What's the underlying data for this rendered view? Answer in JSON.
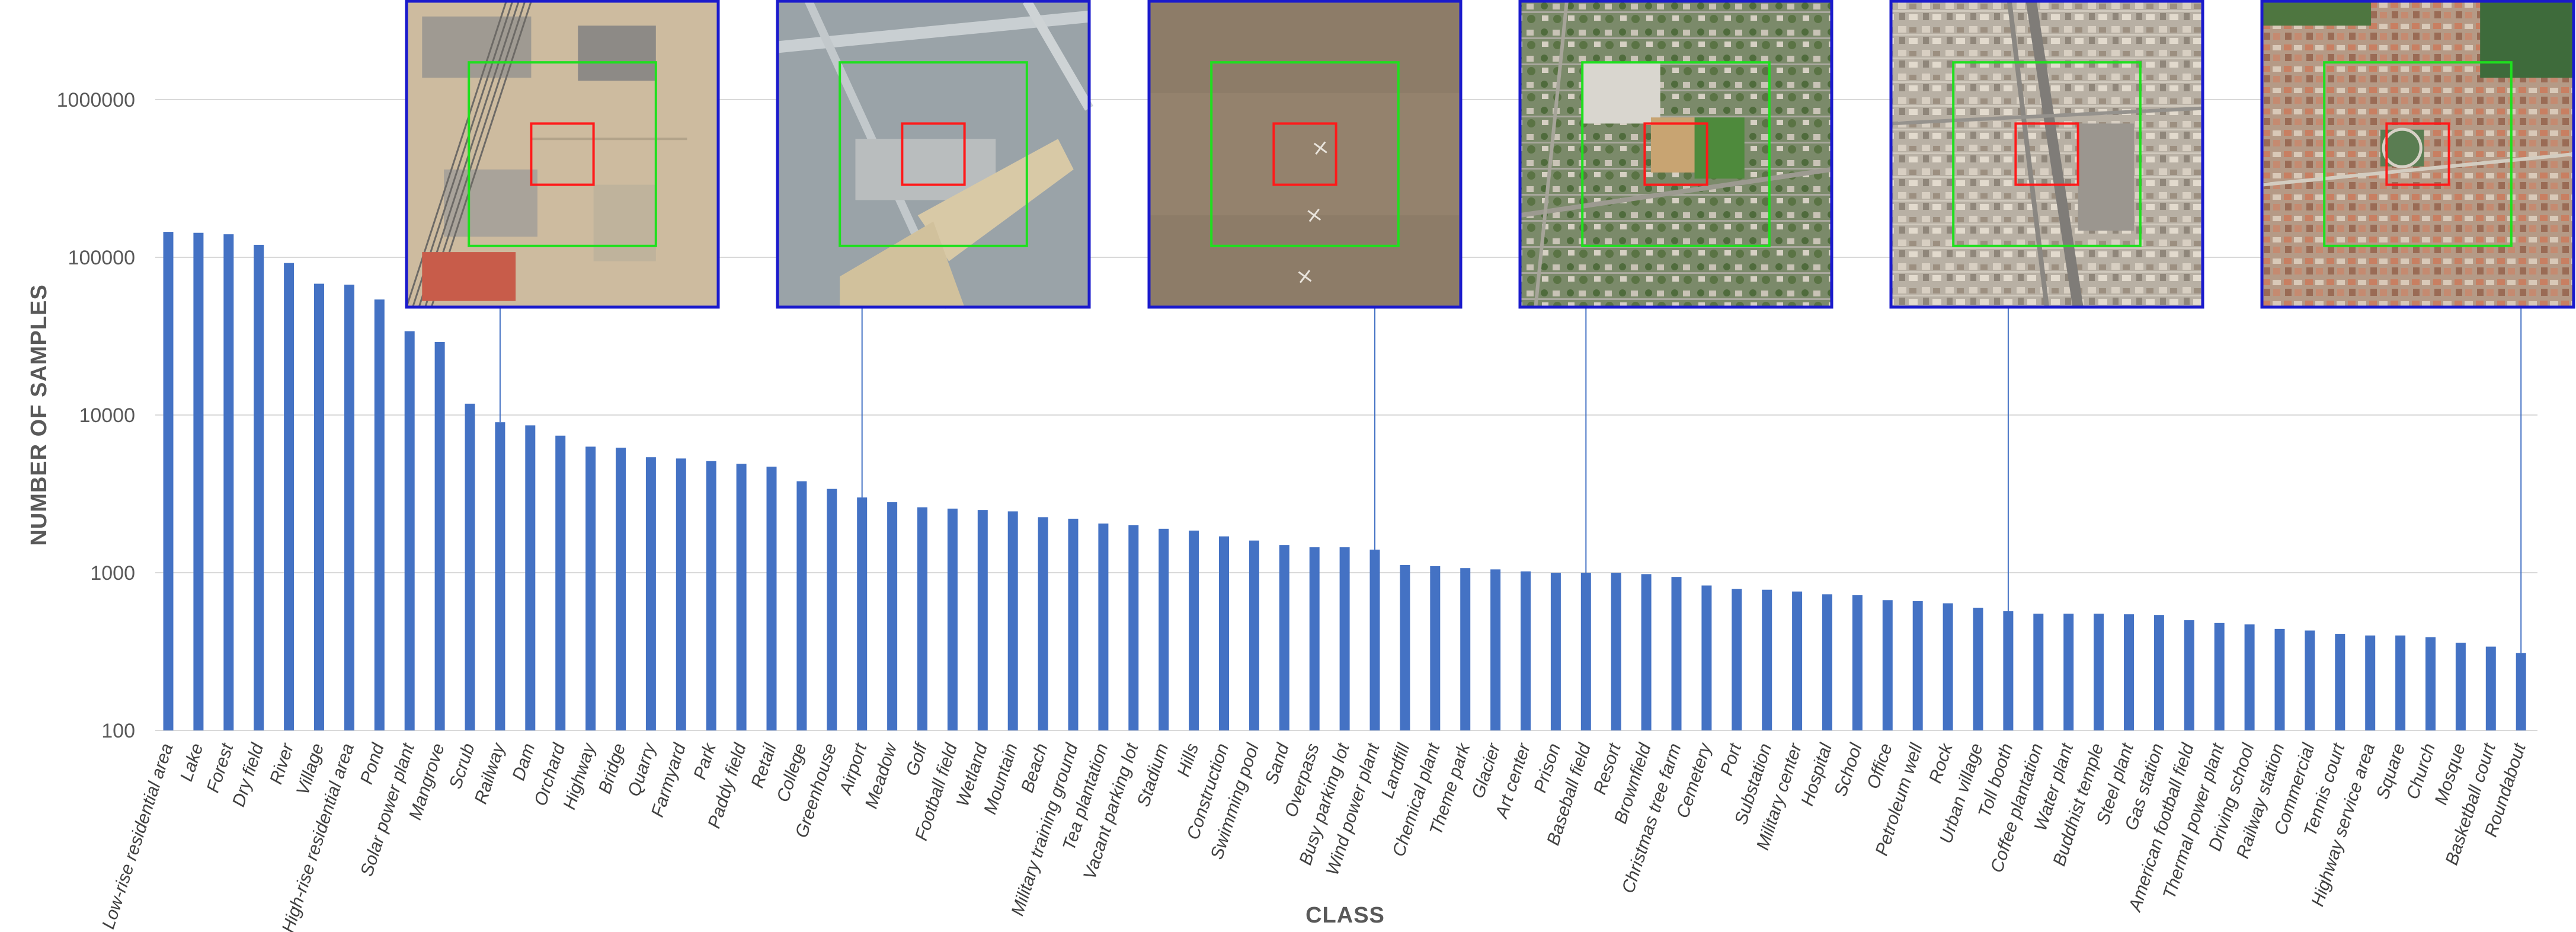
{
  "chart_data": {
    "type": "bar",
    "xlabel": "CLASS",
    "ylabel": "NUMBER OF SAMPLES",
    "yscale": "log",
    "ylim": [
      100,
      2000000
    ],
    "yticks": [
      100,
      1000,
      10000,
      100000,
      1000000
    ],
    "ytick_labels": [
      "100",
      "1000",
      "10000",
      "100000",
      "1000000"
    ],
    "grid": true,
    "bar_color": "#4472c4",
    "categories": [
      "Low-rise residential area",
      "Lake",
      "Forest",
      "Dry field",
      "River",
      "Village",
      "High-rise residential area",
      "Pond",
      "Solar power plant",
      "Mangrove",
      "Scrub",
      "Railway",
      "Dam",
      "Orchard",
      "Highway",
      "Bridge",
      "Quarry",
      "Farmyard",
      "Park",
      "Paddy field",
      "Retail",
      "College",
      "Greenhouse",
      "Airport",
      "Meadow",
      "Golf",
      "Football field",
      "Wetland",
      "Mountain",
      "Beach",
      "Military training ground",
      "Tea plantation",
      "Vacant parking lot",
      "Stadium",
      "Hills",
      "Construction",
      "Swimming pool",
      "Sand",
      "Overpass",
      "Busy parking lot",
      "Wind power plant",
      "Landfill",
      "Chemical plant",
      "Theme park",
      "Glacier",
      "Art center",
      "Prison",
      "Baseball field",
      "Resort",
      "Brownfield",
      "Christmas tree farm",
      "Cemetery",
      "Port",
      "Substation",
      "Military center",
      "Hospital",
      "School",
      "Office",
      "Petroleum well",
      "Rock",
      "Urban village",
      "Toll booth",
      "Coffee plantation",
      "Water plant",
      "Buddhist temple",
      "Steel plant",
      "Gas station",
      "American football field",
      "Thermal power plant",
      "Driving school",
      "Railway station",
      "Commercial",
      "Tennis court",
      "Highway service area",
      "Square",
      "Church",
      "Mosque",
      "Basketball court",
      "Roundabout"
    ],
    "values": [
      145000,
      143000,
      140000,
      120000,
      92000,
      68000,
      67000,
      54000,
      34000,
      29000,
      11800,
      9000,
      8600,
      7400,
      6300,
      6200,
      5400,
      5300,
      5100,
      4900,
      4700,
      3800,
      3400,
      3000,
      2800,
      2600,
      2550,
      2500,
      2450,
      2250,
      2200,
      2050,
      2000,
      1900,
      1850,
      1700,
      1600,
      1500,
      1450,
      1450,
      1400,
      1120,
      1100,
      1070,
      1050,
      1020,
      1000,
      1000,
      1000,
      980,
      940,
      830,
      790,
      780,
      760,
      730,
      720,
      670,
      660,
      640,
      600,
      570,
      550,
      550,
      550,
      545,
      540,
      500,
      480,
      470,
      440,
      430,
      410,
      400,
      400,
      390,
      360,
      340,
      310
    ],
    "image_callouts": [
      {
        "category": "Railway",
        "icon": "aerial-image-railway"
      },
      {
        "category": "Airport",
        "icon": "aerial-image-airport"
      },
      {
        "category": "Wind power plant",
        "icon": "aerial-image-wind-power-plant"
      },
      {
        "category": "Baseball field",
        "icon": "aerial-image-baseball-field"
      },
      {
        "category": "Toll booth",
        "icon": "aerial-image-toll-booth"
      },
      {
        "category": "Roundabout",
        "icon": "aerial-image-roundabout"
      }
    ]
  }
}
